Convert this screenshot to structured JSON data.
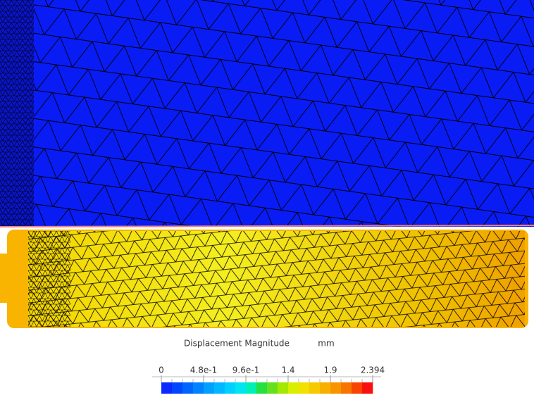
{
  "legend": {
    "title": "Displacement Magnitude",
    "unit": "mm",
    "ticks": [
      "0",
      "4.8e-1",
      "9.6e-1",
      "1.4",
      "1.9",
      "2.394"
    ],
    "colors": [
      "#0a28ff",
      "#0046ff",
      "#0064ff",
      "#0082ff",
      "#00a0ff",
      "#00b8ff",
      "#00d0ff",
      "#00e6f0",
      "#00f0b4",
      "#24e040",
      "#64e01c",
      "#a4e800",
      "#d8f000",
      "#f4e000",
      "#f8c800",
      "#f8b000",
      "#f89400",
      "#f87400",
      "#f84400",
      "#f81010"
    ]
  }
}
